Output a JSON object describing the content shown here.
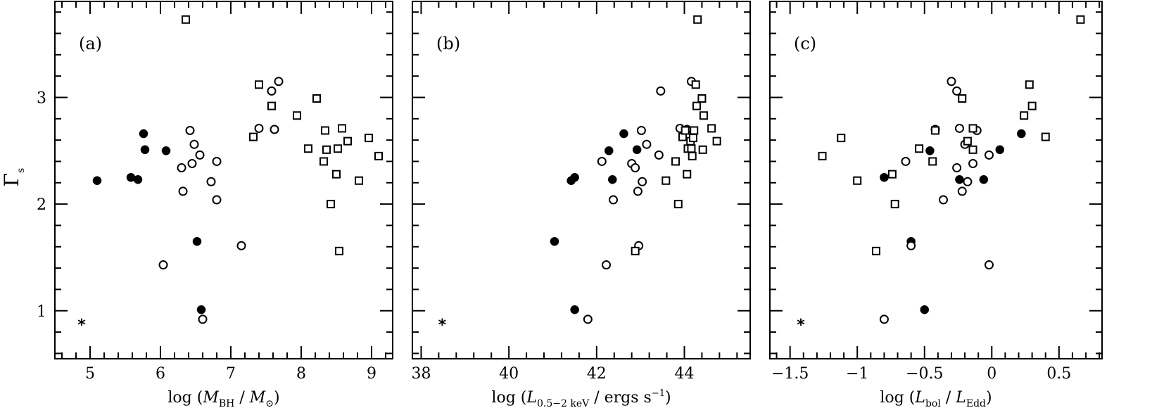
{
  "chart_data": [
    {
      "type": "scatter",
      "panel_label": "(a)",
      "xlabel_parts": [
        "log (",
        "M",
        "BH",
        " / ",
        "M",
        "⊙",
        ")"
      ],
      "ylabel": "Γ",
      "ylabel_sub": "s",
      "xlim": [
        4.5,
        9.3
      ],
      "ylim": [
        0.55,
        3.9
      ],
      "xticks_major": [
        5,
        6,
        7,
        8,
        9
      ],
      "xtick_labels": [
        "5",
        "6",
        "7",
        "8",
        "9"
      ],
      "yticks_major": [
        1,
        2,
        3
      ],
      "ytick_labels": [
        "1",
        "2",
        "3"
      ],
      "legend": "none",
      "grid": false,
      "annotation": {
        "text": "*",
        "x": 4.88,
        "y": 0.9
      },
      "series": [
        {
          "marker": "filled-circle",
          "points": [
            [
              5.1,
              2.22
            ],
            [
              5.58,
              2.25
            ],
            [
              5.68,
              2.23
            ],
            [
              5.76,
              2.66
            ],
            [
              5.78,
              2.51
            ],
            [
              6.08,
              2.5
            ],
            [
              6.52,
              1.65
            ],
            [
              6.58,
              1.01
            ]
          ]
        },
        {
          "marker": "open-circle",
          "points": [
            [
              6.04,
              1.43
            ],
            [
              6.3,
              2.34
            ],
            [
              6.32,
              2.12
            ],
            [
              6.42,
              2.69
            ],
            [
              6.45,
              2.38
            ],
            [
              6.48,
              2.56
            ],
            [
              6.56,
              2.46
            ],
            [
              6.6,
              0.92
            ],
            [
              6.72,
              2.21
            ],
            [
              6.8,
              2.04
            ],
            [
              6.8,
              2.4
            ],
            [
              7.15,
              1.61
            ],
            [
              7.4,
              2.71
            ],
            [
              7.58,
              3.06
            ],
            [
              7.62,
              2.7
            ],
            [
              7.68,
              3.15
            ]
          ]
        },
        {
          "marker": "square",
          "points": [
            [
              6.36,
              3.73
            ],
            [
              7.32,
              2.63
            ],
            [
              7.4,
              3.12
            ],
            [
              7.58,
              2.92
            ],
            [
              7.94,
              2.83
            ],
            [
              8.1,
              2.52
            ],
            [
              8.22,
              2.99
            ],
            [
              8.32,
              2.4
            ],
            [
              8.34,
              2.69
            ],
            [
              8.36,
              2.51
            ],
            [
              8.42,
              2.0
            ],
            [
              8.5,
              2.28
            ],
            [
              8.52,
              2.52
            ],
            [
              8.54,
              1.56
            ],
            [
              8.58,
              2.71
            ],
            [
              8.66,
              2.59
            ],
            [
              8.82,
              2.22
            ],
            [
              8.96,
              2.62
            ],
            [
              9.1,
              2.45
            ]
          ]
        }
      ]
    },
    {
      "type": "scatter",
      "panel_label": "(b)",
      "xlabel_parts": [
        "log (",
        "L",
        "0.5−2 keV",
        " / ergs s",
        "−1",
        ")"
      ],
      "ylabel": "",
      "xlim": [
        37.8,
        45.5
      ],
      "ylim": [
        0.55,
        3.9
      ],
      "xticks_major": [
        38,
        40,
        42,
        44
      ],
      "xtick_labels": [
        "38",
        "40",
        "42",
        "44"
      ],
      "yticks_major": [
        1,
        2,
        3
      ],
      "ytick_labels": [
        "",
        "",
        ""
      ],
      "legend": "none",
      "grid": false,
      "annotation": {
        "text": "*",
        "x": 38.48,
        "y": 0.9
      },
      "series": [
        {
          "marker": "filled-circle",
          "points": [
            [
              41.04,
              1.65
            ],
            [
              41.42,
              2.22
            ],
            [
              41.5,
              2.25
            ],
            [
              41.5,
              1.01
            ],
            [
              42.28,
              2.5
            ],
            [
              42.36,
              2.23
            ],
            [
              42.62,
              2.66
            ],
            [
              42.92,
              2.51
            ]
          ]
        },
        {
          "marker": "open-circle",
          "points": [
            [
              41.8,
              0.92
            ],
            [
              42.12,
              2.4
            ],
            [
              42.22,
              1.43
            ],
            [
              42.38,
              2.04
            ],
            [
              42.8,
              2.38
            ],
            [
              42.88,
              2.34
            ],
            [
              42.94,
              2.12
            ],
            [
              42.96,
              1.61
            ],
            [
              43.02,
              2.69
            ],
            [
              43.04,
              2.21
            ],
            [
              43.14,
              2.56
            ],
            [
              43.42,
              2.46
            ],
            [
              43.46,
              3.06
            ],
            [
              43.9,
              2.71
            ],
            [
              44.06,
              2.7
            ],
            [
              44.16,
              3.15
            ]
          ]
        },
        {
          "marker": "square",
          "points": [
            [
              42.88,
              1.56
            ],
            [
              43.58,
              2.22
            ],
            [
              43.8,
              2.4
            ],
            [
              43.86,
              2.0
            ],
            [
              43.96,
              2.63
            ],
            [
              44.02,
              2.69
            ],
            [
              44.06,
              2.28
            ],
            [
              44.08,
              2.52
            ],
            [
              44.14,
              2.59
            ],
            [
              44.16,
              2.52
            ],
            [
              44.18,
              2.45
            ],
            [
              44.2,
              2.62
            ],
            [
              44.22,
              2.69
            ],
            [
              44.26,
              3.12
            ],
            [
              44.28,
              2.92
            ],
            [
              44.3,
              3.73
            ],
            [
              44.4,
              2.99
            ],
            [
              44.42,
              2.51
            ],
            [
              44.44,
              2.83
            ],
            [
              44.62,
              2.71
            ],
            [
              44.74,
              2.59
            ]
          ]
        }
      ]
    },
    {
      "type": "scatter",
      "panel_label": "(c)",
      "xlabel_parts": [
        "log (",
        "L",
        "bol",
        " / ",
        "L",
        "Edd",
        ")"
      ],
      "ylabel": "",
      "xlim": [
        -1.65,
        0.82
      ],
      "ylim": [
        0.55,
        3.9
      ],
      "xticks_major": [
        -1.5,
        -1,
        -0.5,
        0,
        0.5
      ],
      "xtick_labels": [
        "−1.5",
        "−1",
        "−0.5",
        "0",
        "0.5"
      ],
      "yticks_major": [
        1,
        2,
        3
      ],
      "ytick_labels": [
        "",
        "",
        ""
      ],
      "legend": "none",
      "grid": false,
      "annotation": {
        "text": "*",
        "x": -1.42,
        "y": 0.9
      },
      "series": [
        {
          "marker": "filled-circle",
          "points": [
            [
              -0.8,
              2.25
            ],
            [
              -0.6,
              1.65
            ],
            [
              -0.46,
              2.5
            ],
            [
              -0.24,
              2.23
            ],
            [
              -0.5,
              1.01
            ],
            [
              -0.06,
              2.23
            ],
            [
              0.06,
              2.51
            ],
            [
              0.22,
              2.66
            ]
          ]
        },
        {
          "marker": "open-circle",
          "points": [
            [
              -0.8,
              0.92
            ],
            [
              -0.64,
              2.4
            ],
            [
              -0.6,
              1.61
            ],
            [
              -0.42,
              2.7
            ],
            [
              -0.36,
              2.04
            ],
            [
              -0.3,
              3.15
            ],
            [
              -0.26,
              3.06
            ],
            [
              -0.26,
              2.34
            ],
            [
              -0.22,
              2.12
            ],
            [
              -0.2,
              2.56
            ],
            [
              -0.18,
              2.21
            ],
            [
              -0.14,
              2.38
            ],
            [
              -0.11,
              2.69
            ],
            [
              -0.24,
              2.71
            ],
            [
              -0.02,
              2.46
            ],
            [
              -0.02,
              1.43
            ]
          ]
        },
        {
          "marker": "square",
          "points": [
            [
              -1.26,
              2.45
            ],
            [
              -1.12,
              2.62
            ],
            [
              -1.0,
              2.22
            ],
            [
              -0.86,
              1.56
            ],
            [
              -0.74,
              2.28
            ],
            [
              -0.72,
              2.0
            ],
            [
              -0.54,
              2.52
            ],
            [
              -0.44,
              2.4
            ],
            [
              -0.42,
              2.69
            ],
            [
              -0.22,
              2.99
            ],
            [
              -0.14,
              2.71
            ],
            [
              -0.14,
              2.51
            ],
            [
              -0.18,
              2.59
            ],
            [
              0.24,
              2.83
            ],
            [
              0.28,
              3.12
            ],
            [
              0.3,
              2.92
            ],
            [
              0.4,
              2.63
            ],
            [
              0.66,
              3.73
            ]
          ]
        }
      ]
    }
  ]
}
